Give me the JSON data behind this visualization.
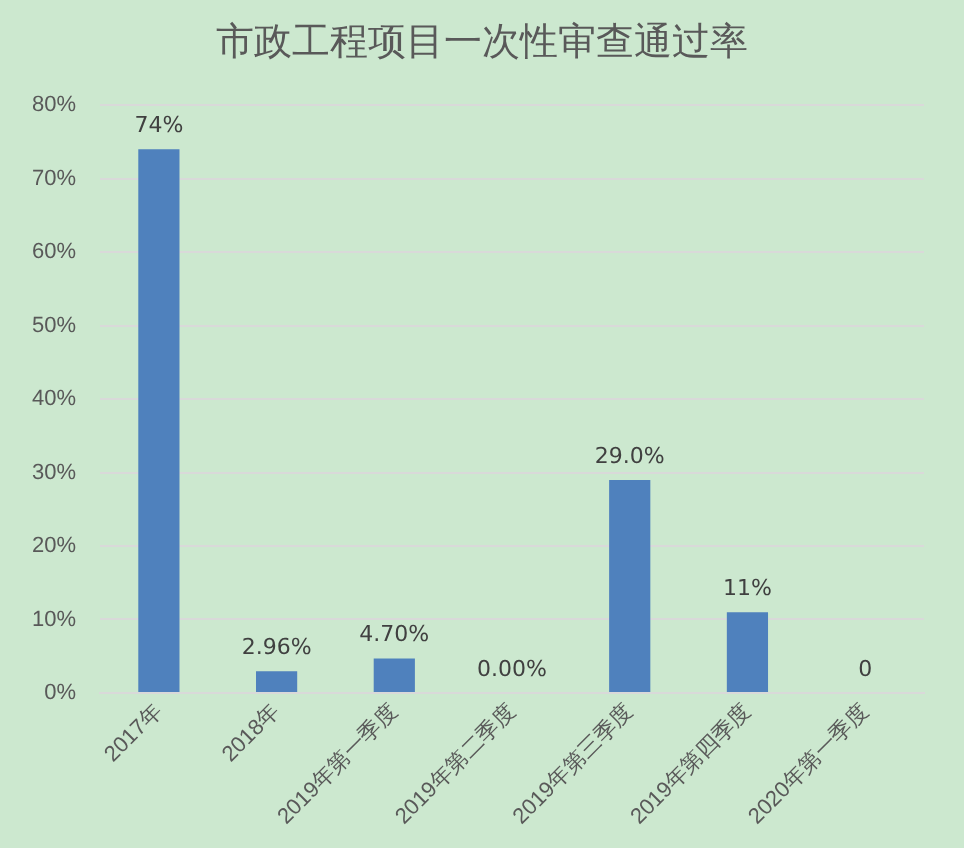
{
  "chart_data": {
    "type": "bar",
    "title": "市政工程项目一次性审查通过率",
    "categories": [
      "2017年",
      "2018年",
      "2019年第一季度",
      "2019年第二季度",
      "2019年第三季度",
      "2019年第四季度",
      "2020年第一季度"
    ],
    "values": [
      74,
      2.96,
      4.7,
      0,
      29.0,
      11,
      0
    ],
    "value_labels": [
      "74%",
      "2.96%",
      "4.70%",
      "0.00%",
      "29.0%",
      "11%",
      "0"
    ],
    "color": "#4f81bd",
    "ylim": [
      0,
      80
    ],
    "yticks": [
      {
        "value": 0,
        "label": "0%"
      },
      {
        "value": 10,
        "label": "10%"
      },
      {
        "value": 20,
        "label": "20%"
      },
      {
        "value": 30,
        "label": "30%"
      },
      {
        "value": 40,
        "label": "40%"
      },
      {
        "value": 50,
        "label": "50%"
      },
      {
        "value": 60,
        "label": "60%"
      },
      {
        "value": 70,
        "label": "70%"
      },
      {
        "value": 80,
        "label": "80%"
      }
    ],
    "grid": "y",
    "legend": false
  }
}
